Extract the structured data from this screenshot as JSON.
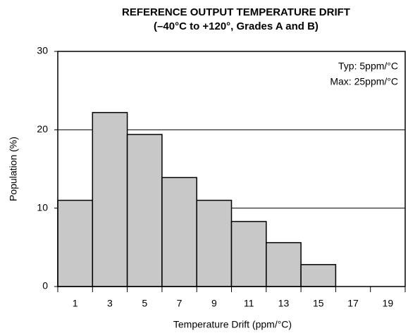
{
  "chart_data": {
    "type": "bar",
    "title": "REFERENCE OUTPUT TEMPERATURE DRIFT",
    "subtitle": "(–40°C to +120°, Grades A and B)",
    "x_label": "Temperature Drift (ppm/°C)",
    "y_label": "Population (%)",
    "annotations": [
      "Typ: 5ppm/°C",
      "Max: 25ppm/°C"
    ],
    "categories": [
      "1",
      "3",
      "5",
      "7",
      "9",
      "11",
      "13",
      "15",
      "17",
      "19"
    ],
    "values": [
      11,
      22.2,
      19.4,
      13.9,
      11,
      8.3,
      5.6,
      2.8,
      0,
      0
    ],
    "color": "#c8c8c8",
    "ylim": [
      0,
      30
    ],
    "yticks": [
      0,
      10,
      20,
      30
    ],
    "grid": true
  }
}
